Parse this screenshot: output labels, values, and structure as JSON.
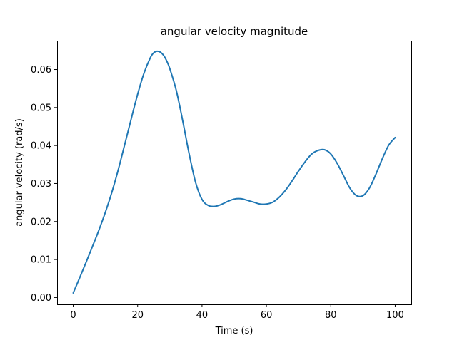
{
  "chart_data": {
    "type": "line",
    "title": "angular velocity magnitude",
    "xlabel": "Time (s)",
    "ylabel": "angular velocity (rad/s)",
    "xlim": [
      -5,
      105
    ],
    "ylim": [
      -0.0018,
      0.0676
    ],
    "xticks": [
      0,
      20,
      40,
      60,
      80,
      100
    ],
    "xtick_labels": [
      "0",
      "20",
      "40",
      "60",
      "80",
      "100"
    ],
    "yticks": [
      0.0,
      0.01,
      0.02,
      0.03,
      0.04,
      0.05,
      0.06
    ],
    "ytick_labels": [
      "0.00",
      "0.01",
      "0.02",
      "0.03",
      "0.04",
      "0.05",
      "0.06"
    ],
    "grid": false,
    "series": [
      {
        "color": "#1f77b4",
        "x": [
          0,
          2,
          4,
          6,
          8,
          10,
          12,
          14,
          16,
          18,
          20,
          22,
          24,
          25,
          26,
          27,
          28,
          29,
          30,
          32,
          34,
          36,
          38,
          40,
          42,
          44,
          46,
          48,
          50,
          52,
          54,
          56,
          58,
          60,
          62,
          64,
          66,
          68,
          70,
          72,
          74,
          76,
          78,
          80,
          82,
          84,
          86,
          88,
          90,
          92,
          94,
          96,
          98,
          100
        ],
        "y": [
          0.0012,
          0.0052,
          0.0093,
          0.0135,
          0.0178,
          0.0225,
          0.0277,
          0.0337,
          0.0403,
          0.047,
          0.0535,
          0.0591,
          0.0632,
          0.0644,
          0.0648,
          0.0646,
          0.0638,
          0.0623,
          0.0602,
          0.0545,
          0.0465,
          0.0378,
          0.0303,
          0.0258,
          0.0242,
          0.024,
          0.0245,
          0.0253,
          0.0259,
          0.026,
          0.0256,
          0.0251,
          0.0246,
          0.0246,
          0.0251,
          0.0264,
          0.0283,
          0.0307,
          0.0333,
          0.0357,
          0.0377,
          0.0387,
          0.0389,
          0.0378,
          0.0353,
          0.032,
          0.0287,
          0.0268,
          0.0268,
          0.0288,
          0.0324,
          0.0365,
          0.0401,
          0.0421
        ]
      }
    ]
  }
}
